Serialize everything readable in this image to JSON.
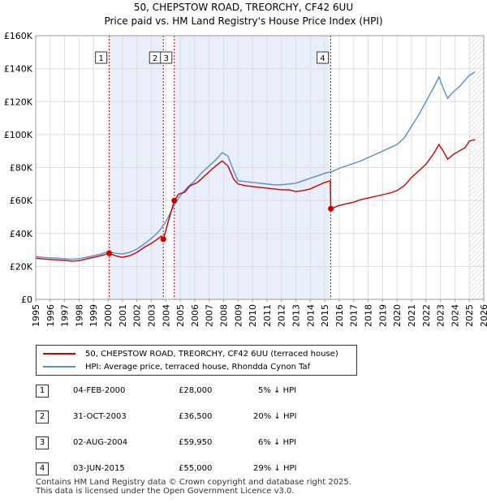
{
  "header": {
    "title_line1": "50, CHEPSTOW ROAD, TREORCHY, CF42 6UU",
    "title_line2": "Price paid vs. HM Land Registry's House Price Index (HPI)"
  },
  "colors": {
    "price_line": "#cc0000",
    "hpi_line": "#5b8ccc",
    "shade": "#e8eefa",
    "marker_line": "#cc0000"
  },
  "chart_data": {
    "type": "line",
    "title": "50, CHEPSTOW ROAD, TREORCHY, CF42 6UU - Price paid vs. HM Land Registry's House Price Index (HPI)",
    "xlim": [
      1995,
      2026
    ],
    "ylim": [
      0,
      160000
    ],
    "y_ticks": [
      0,
      20000,
      40000,
      60000,
      80000,
      100000,
      120000,
      140000,
      160000
    ],
    "y_tick_labels": [
      "£0",
      "£20K",
      "£40K",
      "£60K",
      "£80K",
      "£100K",
      "£120K",
      "£140K",
      "£160K"
    ],
    "x_ticks": [
      1995,
      1996,
      1997,
      1998,
      1999,
      2000,
      2001,
      2002,
      2003,
      2004,
      2005,
      2006,
      2007,
      2008,
      2009,
      2010,
      2011,
      2012,
      2013,
      2014,
      2015,
      2016,
      2017,
      2018,
      2019,
      2020,
      2021,
      2022,
      2023,
      2024,
      2025,
      2026
    ],
    "x_tick_labels": [
      "1995",
      "1996",
      "1997",
      "1998",
      "1999",
      "2000",
      "2001",
      "2002",
      "2003",
      "2004",
      "2005",
      "2006",
      "2007",
      "2008",
      "2009",
      "2010",
      "2011",
      "2012",
      "2013",
      "2014",
      "2015",
      "2016",
      "2017",
      "2018",
      "2019",
      "2020",
      "2021",
      "2022",
      "2023",
      "2024",
      "2025",
      "2026"
    ],
    "shaded_ranges": [
      [
        2000.09,
        2003.83
      ],
      [
        2004.59,
        2015.42
      ]
    ],
    "future_hatch_from": 2025.0,
    "series": [
      {
        "name": "50, CHEPSTOW ROAD, TREORCHY, CF42 6UU (terraced house)",
        "color": "#cc0000",
        "points": [
          [
            1995.0,
            25000
          ],
          [
            1995.5,
            24500
          ],
          [
            1996.0,
            24200
          ],
          [
            1996.5,
            24000
          ],
          [
            1997.0,
            23700
          ],
          [
            1997.5,
            23200
          ],
          [
            1998.0,
            23500
          ],
          [
            1998.5,
            24500
          ],
          [
            1999.0,
            25500
          ],
          [
            1999.5,
            26500
          ],
          [
            2000.09,
            28000
          ],
          [
            2000.5,
            26500
          ],
          [
            2001.0,
            25500
          ],
          [
            2001.5,
            26500
          ],
          [
            2002.0,
            28500
          ],
          [
            2002.5,
            31500
          ],
          [
            2003.0,
            34000
          ],
          [
            2003.5,
            37000
          ],
          [
            2003.7,
            38500
          ],
          [
            2003.83,
            36500
          ],
          [
            2004.2,
            48000
          ],
          [
            2004.59,
            59950
          ],
          [
            2004.9,
            64000
          ],
          [
            2005.3,
            65000
          ],
          [
            2005.7,
            69000
          ],
          [
            2006.2,
            71000
          ],
          [
            2006.7,
            75000
          ],
          [
            2007.2,
            79000
          ],
          [
            2007.6,
            82000
          ],
          [
            2007.9,
            84000
          ],
          [
            2008.3,
            81000
          ],
          [
            2008.7,
            73000
          ],
          [
            2009.0,
            70000
          ],
          [
            2009.5,
            69000
          ],
          [
            2010.0,
            68500
          ],
          [
            2010.5,
            68000
          ],
          [
            2011.0,
            67500
          ],
          [
            2011.5,
            67000
          ],
          [
            2012.0,
            66500
          ],
          [
            2012.5,
            66500
          ],
          [
            2013.0,
            65500
          ],
          [
            2013.5,
            66000
          ],
          [
            2014.0,
            67000
          ],
          [
            2014.5,
            69000
          ],
          [
            2015.0,
            71000
          ],
          [
            2015.38,
            72000
          ],
          [
            2015.42,
            55000
          ],
          [
            2016.0,
            57000
          ],
          [
            2016.5,
            58000
          ],
          [
            2017.0,
            59000
          ],
          [
            2017.5,
            60500
          ],
          [
            2018.0,
            61500
          ],
          [
            2018.5,
            62500
          ],
          [
            2019.0,
            63500
          ],
          [
            2019.5,
            64500
          ],
          [
            2020.0,
            66000
          ],
          [
            2020.5,
            69000
          ],
          [
            2021.0,
            74000
          ],
          [
            2021.5,
            78000
          ],
          [
            2022.0,
            82000
          ],
          [
            2022.5,
            88000
          ],
          [
            2022.9,
            94000
          ],
          [
            2023.2,
            90000
          ],
          [
            2023.5,
            85000
          ],
          [
            2023.9,
            88000
          ],
          [
            2024.3,
            90000
          ],
          [
            2024.7,
            92000
          ],
          [
            2025.0,
            96000
          ],
          [
            2025.4,
            97000
          ]
        ]
      },
      {
        "name": "HPI: Average price, terraced house, Rhondda Cynon Taf",
        "color": "#5b8ccc",
        "points": [
          [
            1995.0,
            26000
          ],
          [
            1995.5,
            25500
          ],
          [
            1996.0,
            25200
          ],
          [
            1996.5,
            25000
          ],
          [
            1997.0,
            24600
          ],
          [
            1997.5,
            24300
          ],
          [
            1998.0,
            24700
          ],
          [
            1998.5,
            25500
          ],
          [
            1999.0,
            26500
          ],
          [
            1999.5,
            27500
          ],
          [
            2000.0,
            29000
          ],
          [
            2000.5,
            28000
          ],
          [
            2001.0,
            27500
          ],
          [
            2001.5,
            28500
          ],
          [
            2002.0,
            30500
          ],
          [
            2002.5,
            33500
          ],
          [
            2003.0,
            37000
          ],
          [
            2003.5,
            41000
          ],
          [
            2004.0,
            47000
          ],
          [
            2004.5,
            56000
          ],
          [
            2005.0,
            63000
          ],
          [
            2005.5,
            68000
          ],
          [
            2006.0,
            72000
          ],
          [
            2006.5,
            77000
          ],
          [
            2007.0,
            81000
          ],
          [
            2007.5,
            85000
          ],
          [
            2007.9,
            89000
          ],
          [
            2008.3,
            87000
          ],
          [
            2008.7,
            78000
          ],
          [
            2009.0,
            72000
          ],
          [
            2009.5,
            71500
          ],
          [
            2010.0,
            71000
          ],
          [
            2010.5,
            70500
          ],
          [
            2011.0,
            70000
          ],
          [
            2011.5,
            69500
          ],
          [
            2012.0,
            69500
          ],
          [
            2012.5,
            70000
          ],
          [
            2013.0,
            70500
          ],
          [
            2013.5,
            72000
          ],
          [
            2014.0,
            73500
          ],
          [
            2014.5,
            75000
          ],
          [
            2015.0,
            76500
          ],
          [
            2015.5,
            77500
          ],
          [
            2016.0,
            79500
          ],
          [
            2016.5,
            81000
          ],
          [
            2017.0,
            82500
          ],
          [
            2017.5,
            84000
          ],
          [
            2018.0,
            86000
          ],
          [
            2018.5,
            88000
          ],
          [
            2019.0,
            90000
          ],
          [
            2019.5,
            92000
          ],
          [
            2020.0,
            94000
          ],
          [
            2020.5,
            98000
          ],
          [
            2021.0,
            105000
          ],
          [
            2021.5,
            112000
          ],
          [
            2022.0,
            120000
          ],
          [
            2022.5,
            128000
          ],
          [
            2022.9,
            135000
          ],
          [
            2023.2,
            128000
          ],
          [
            2023.5,
            122000
          ],
          [
            2023.9,
            126000
          ],
          [
            2024.3,
            129000
          ],
          [
            2024.7,
            133000
          ],
          [
            2025.0,
            136000
          ],
          [
            2025.4,
            138000
          ]
        ]
      }
    ],
    "sale_markers": [
      {
        "label": "1",
        "x": 2000.09,
        "y": 28000
      },
      {
        "label": "2",
        "x": 2003.83,
        "y": 36500
      },
      {
        "label": "3",
        "x": 2004.59,
        "y": 59950
      },
      {
        "label": "4",
        "x": 2015.42,
        "y": 55000
      }
    ]
  },
  "legend": {
    "price_label": "50, CHEPSTOW ROAD, TREORCHY, CF42 6UU (terraced house)",
    "hpi_label": "HPI: Average price, terraced house, Rhondda Cynon Taf"
  },
  "sales": [
    {
      "num": "1",
      "date": "04-FEB-2000",
      "price": "£28,000",
      "hpi": "5% ↓ HPI"
    },
    {
      "num": "2",
      "date": "31-OCT-2003",
      "price": "£36,500",
      "hpi": "20% ↓ HPI"
    },
    {
      "num": "3",
      "date": "02-AUG-2004",
      "price": "£59,950",
      "hpi": "6% ↓ HPI"
    },
    {
      "num": "4",
      "date": "03-JUN-2015",
      "price": "£55,000",
      "hpi": "29% ↓ HPI"
    }
  ],
  "footer": {
    "line1": "Contains HM Land Registry data © Crown copyright and database right 2025.",
    "line2": "This data is licensed under the Open Government Licence v3.0."
  }
}
